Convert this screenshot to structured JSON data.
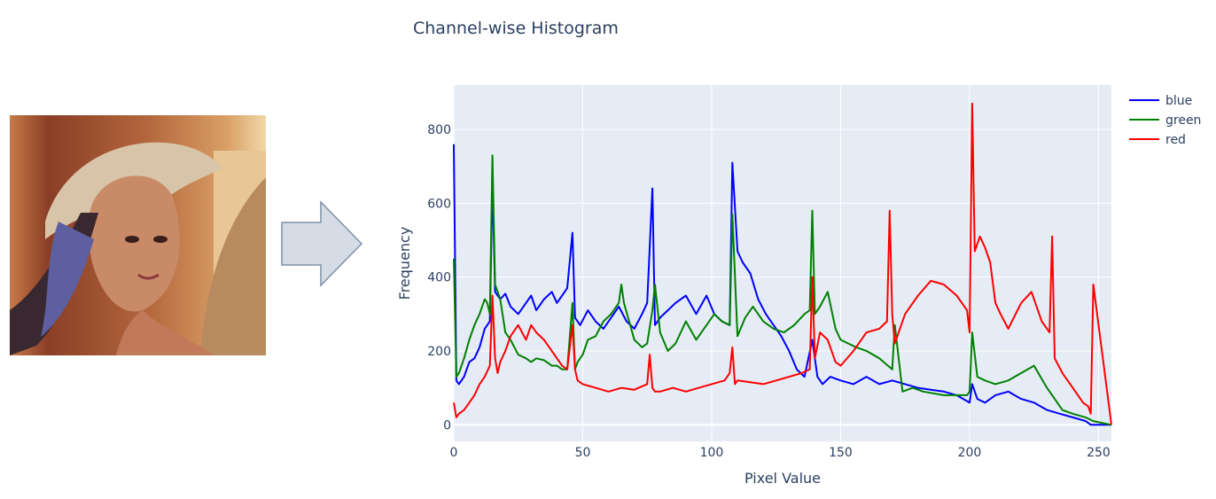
{
  "input_image": {
    "description_icon": "portrait-photo"
  },
  "arrow": {
    "icon": "right-arrow-icon",
    "fill": "#d6dce5",
    "stroke": "#7f92a8"
  },
  "chart_data": {
    "type": "line",
    "title": "Channel-wise Histogram",
    "xlabel": "Pixel Value",
    "ylabel": "Frequency",
    "xlim": [
      0,
      255
    ],
    "ylim": [
      -45,
      920
    ],
    "xticks": [
      0,
      50,
      100,
      150,
      200,
      250
    ],
    "yticks": [
      0,
      200,
      400,
      600,
      800
    ],
    "grid": true,
    "legend_position": "top-right",
    "plot_background": "#e5ecf6",
    "series": [
      {
        "name": "blue",
        "color": "#0000ff",
        "x": [
          0,
          1,
          2,
          4,
          6,
          8,
          10,
          12,
          14,
          15,
          16,
          18,
          20,
          22,
          25,
          28,
          30,
          32,
          35,
          38,
          40,
          42,
          44,
          46,
          47,
          49,
          52,
          55,
          58,
          61,
          64,
          67,
          70,
          73,
          75,
          77,
          78,
          80,
          83,
          86,
          90,
          94,
          98,
          101,
          104,
          107,
          108,
          110,
          112,
          115,
          118,
          121,
          124,
          127,
          130,
          133,
          136,
          139,
          141,
          143,
          146,
          150,
          155,
          160,
          165,
          170,
          175,
          180,
          185,
          190,
          195,
          200,
          201,
          203,
          206,
          210,
          215,
          220,
          225,
          230,
          235,
          240,
          245,
          247,
          255
        ],
        "y": [
          760,
          120,
          110,
          130,
          170,
          180,
          210,
          260,
          280,
          660,
          360,
          340,
          355,
          320,
          300,
          330,
          350,
          310,
          340,
          360,
          330,
          350,
          370,
          520,
          290,
          270,
          310,
          280,
          260,
          290,
          320,
          280,
          260,
          300,
          330,
          640,
          270,
          290,
          310,
          330,
          350,
          300,
          350,
          300,
          280,
          270,
          710,
          470,
          440,
          410,
          340,
          300,
          270,
          240,
          200,
          150,
          130,
          230,
          130,
          110,
          130,
          120,
          110,
          130,
          110,
          120,
          110,
          100,
          95,
          90,
          80,
          60,
          110,
          70,
          60,
          80,
          90,
          70,
          60,
          40,
          30,
          20,
          10,
          0,
          0
        ]
      },
      {
        "name": "green",
        "color": "#008000",
        "x": [
          0,
          1,
          2,
          4,
          6,
          8,
          10,
          12,
          13,
          14,
          15,
          16,
          18,
          20,
          22,
          25,
          28,
          30,
          32,
          35,
          38,
          40,
          42,
          44,
          46,
          47,
          48,
          50,
          52,
          55,
          58,
          61,
          64,
          65,
          66,
          68,
          70,
          73,
          75,
          77,
          78,
          80,
          83,
          86,
          90,
          94,
          98,
          101,
          104,
          107,
          108,
          110,
          113,
          116,
          120,
          124,
          128,
          132,
          136,
          138,
          139,
          140,
          142,
          145,
          148,
          150,
          153,
          156,
          160,
          165,
          170,
          171,
          174,
          178,
          182,
          186,
          190,
          195,
          199,
          200,
          201,
          203,
          206,
          210,
          215,
          220,
          225,
          230,
          233,
          236,
          240,
          245,
          248,
          255
        ],
        "y": [
          450,
          130,
          140,
          180,
          230,
          270,
          300,
          340,
          330,
          300,
          730,
          380,
          340,
          250,
          230,
          190,
          180,
          170,
          180,
          175,
          160,
          160,
          150,
          150,
          330,
          150,
          170,
          190,
          230,
          240,
          280,
          300,
          330,
          380,
          330,
          280,
          230,
          210,
          220,
          310,
          380,
          250,
          200,
          220,
          280,
          230,
          270,
          300,
          280,
          270,
          570,
          240,
          290,
          320,
          280,
          260,
          250,
          270,
          300,
          310,
          580,
          300,
          320,
          360,
          260,
          230,
          220,
          210,
          200,
          180,
          150,
          270,
          90,
          100,
          90,
          85,
          80,
          80,
          80,
          90,
          250,
          130,
          120,
          110,
          120,
          140,
          160,
          100,
          70,
          40,
          30,
          20,
          10,
          0
        ]
      },
      {
        "name": "red",
        "color": "#ff0000",
        "x": [
          0,
          1,
          2,
          4,
          6,
          8,
          10,
          12,
          14,
          15,
          16,
          17,
          18,
          20,
          22,
          25,
          28,
          30,
          32,
          35,
          38,
          40,
          42,
          44,
          46,
          47,
          48,
          50,
          55,
          60,
          65,
          70,
          75,
          76,
          77,
          78,
          80,
          85,
          90,
          95,
          100,
          105,
          107,
          108,
          109,
          110,
          115,
          120,
          125,
          130,
          135,
          138,
          139,
          140,
          142,
          145,
          148,
          150,
          155,
          160,
          165,
          168,
          169,
          170,
          171,
          175,
          180,
          185,
          190,
          195,
          199,
          200,
          201,
          202,
          204,
          206,
          208,
          210,
          212,
          215,
          220,
          224,
          228,
          231,
          232,
          233,
          236,
          240,
          244,
          246,
          247,
          248,
          255
        ],
        "y": [
          60,
          20,
          30,
          40,
          60,
          80,
          110,
          130,
          160,
          350,
          180,
          140,
          170,
          200,
          240,
          270,
          230,
          270,
          250,
          230,
          200,
          180,
          160,
          150,
          270,
          150,
          120,
          110,
          100,
          90,
          100,
          95,
          110,
          190,
          100,
          90,
          90,
          100,
          90,
          100,
          110,
          120,
          140,
          210,
          110,
          120,
          115,
          110,
          120,
          130,
          140,
          150,
          400,
          180,
          250,
          230,
          170,
          160,
          200,
          250,
          260,
          280,
          580,
          300,
          220,
          300,
          350,
          390,
          380,
          350,
          310,
          250,
          870,
          470,
          510,
          480,
          440,
          330,
          300,
          260,
          330,
          360,
          280,
          250,
          510,
          180,
          140,
          100,
          60,
          50,
          30,
          380,
          0
        ]
      }
    ]
  }
}
